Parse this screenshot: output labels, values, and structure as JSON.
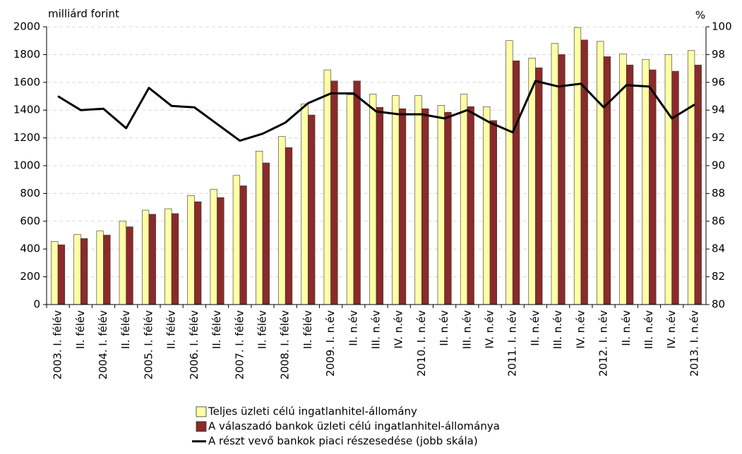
{
  "chart_data": {
    "type": "bar",
    "y_label": "milliárd forint",
    "y2_label": "%",
    "categories": [
      "2003. I. félév",
      "II. félév",
      "2004. I. félév",
      "II. félév",
      "2005. I. félév",
      "II. félév",
      "2006. I. félév",
      "II. félév",
      "2007. I. félév",
      "II. félév",
      "2008. I. félév",
      "II. félév",
      "2009. I. n.év",
      "II. n.év",
      "III. n.év",
      "IV. n.év",
      "2010. I. n.év",
      "II. n.év",
      "III. n.év",
      "IV. n.év",
      "2011. I. n.év",
      "II. n.év",
      "III. n.év",
      "IV. n.év",
      "2012. I. n.év",
      "II. n.év",
      "III. n.év",
      "IV. n.év",
      "2013. I. n.év"
    ],
    "series": [
      {
        "name": "Teljes üzleti célú ingatlanhitel-állomány",
        "type": "bar",
        "color": "#ffffa6",
        "values": [
          455,
          505,
          530,
          600,
          680,
          690,
          785,
          830,
          930,
          1105,
          1210,
          1445,
          1690,
          1510,
          1515,
          1505,
          1505,
          1435,
          1515,
          1425,
          1900,
          1775,
          1880,
          1995,
          1895,
          1805,
          1765,
          1800,
          1830
        ]
      },
      {
        "name": "A válaszadó bankok üzleti célú ingatlanhitel-állománya",
        "type": "bar",
        "color": "#8b2a2a",
        "values": [
          430,
          475,
          500,
          560,
          650,
          655,
          740,
          770,
          855,
          1020,
          1130,
          1365,
          1610,
          1610,
          1420,
          1410,
          1410,
          1385,
          1425,
          1325,
          1755,
          1705,
          1800,
          1905,
          1785,
          1725,
          1690,
          1680,
          1725
        ]
      },
      {
        "name": "A részt vevő bankok piaci részesedése (jobb skála)",
        "type": "line",
        "axis": "y2",
        "color": "#000000",
        "values": [
          95.0,
          94.0,
          94.1,
          92.7,
          95.6,
          94.3,
          94.2,
          93.0,
          91.8,
          92.3,
          93.1,
          94.5,
          95.2,
          95.2,
          93.9,
          93.7,
          93.7,
          93.4,
          94.0,
          93.1,
          92.4,
          96.1,
          95.7,
          95.9,
          94.2,
          95.8,
          95.7,
          93.4,
          94.4
        ]
      }
    ],
    "ylim": [
      0,
      2000
    ],
    "yticks": [
      0,
      200,
      400,
      600,
      800,
      1000,
      1200,
      1400,
      1600,
      1800,
      2000
    ],
    "y2lim": [
      80,
      100
    ],
    "y2ticks": [
      80,
      82,
      84,
      86,
      88,
      90,
      92,
      94,
      96,
      98,
      100
    ],
    "grid": true
  }
}
